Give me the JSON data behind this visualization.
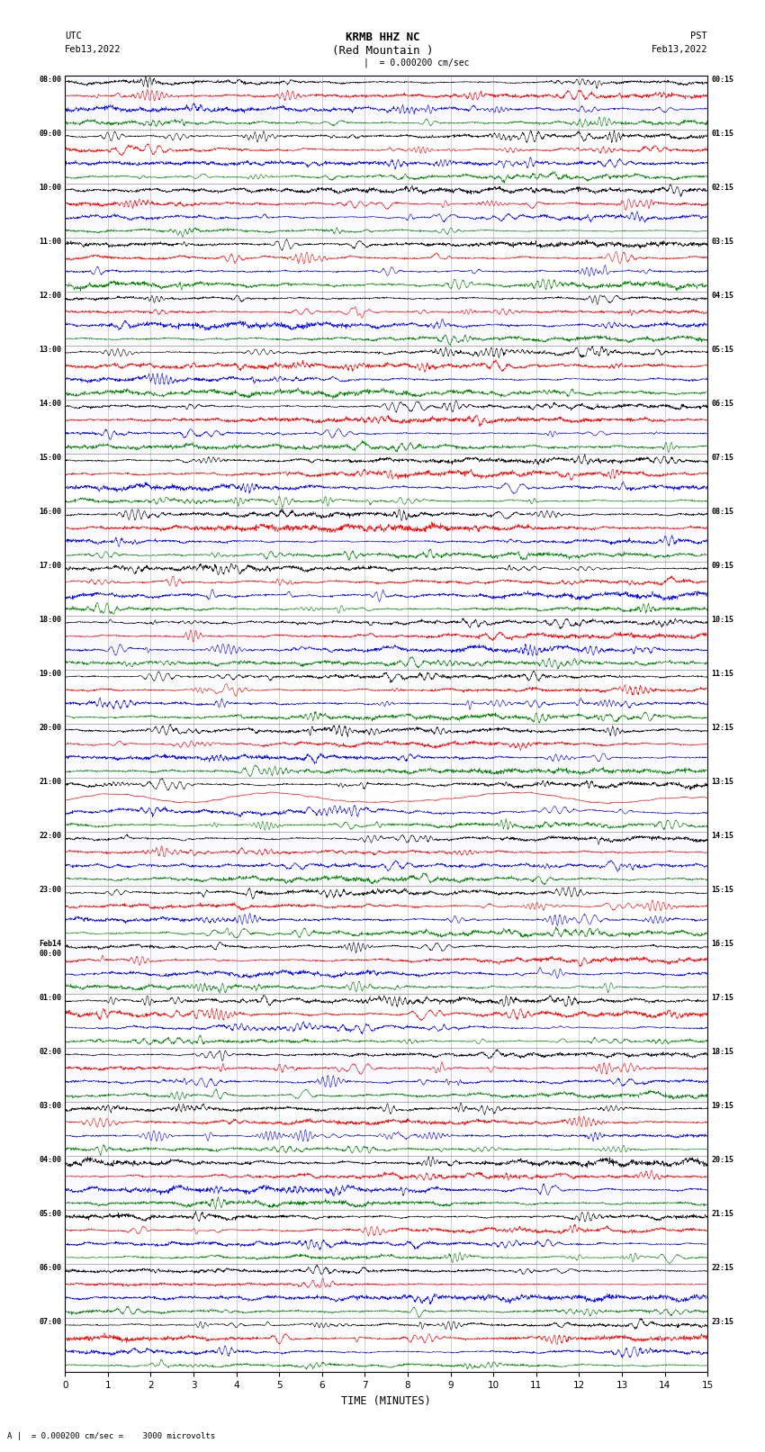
{
  "title_line1": "KRMB HHZ NC",
  "title_line2": "(Red Mountain )",
  "scale_text": "= 0.000200 cm/sec",
  "bottom_scale_text": "= 0.000200 cm/sec =    3000 microvolts",
  "utc_label": "UTC",
  "utc_date": "Feb13,2022",
  "pst_label": "PST",
  "pst_date": "Feb13,2022",
  "xlabel": "TIME (MINUTES)",
  "left_times": [
    "08:00",
    "09:00",
    "10:00",
    "11:00",
    "12:00",
    "13:00",
    "14:00",
    "15:00",
    "16:00",
    "17:00",
    "18:00",
    "19:00",
    "20:00",
    "21:00",
    "22:00",
    "23:00",
    "Feb14\n00:00",
    "01:00",
    "02:00",
    "03:00",
    "04:00",
    "05:00",
    "06:00",
    "07:00"
  ],
  "right_times": [
    "00:15",
    "01:15",
    "02:15",
    "03:15",
    "04:15",
    "05:15",
    "06:15",
    "07:15",
    "08:15",
    "09:15",
    "10:15",
    "11:15",
    "12:15",
    "13:15",
    "14:15",
    "15:15",
    "16:15",
    "17:15",
    "18:15",
    "19:15",
    "20:15",
    "21:15",
    "22:15",
    "23:15"
  ],
  "n_rows": 24,
  "traces_per_row": 4,
  "colors": [
    "black",
    "red",
    "blue",
    "green"
  ],
  "background_color": "white",
  "xlim": [
    0,
    15
  ],
  "xticks": [
    0,
    1,
    2,
    3,
    4,
    5,
    6,
    7,
    8,
    9,
    10,
    11,
    12,
    13,
    14,
    15
  ],
  "seed": 42,
  "fig_width": 8.5,
  "fig_height": 16.13,
  "dpi": 100
}
